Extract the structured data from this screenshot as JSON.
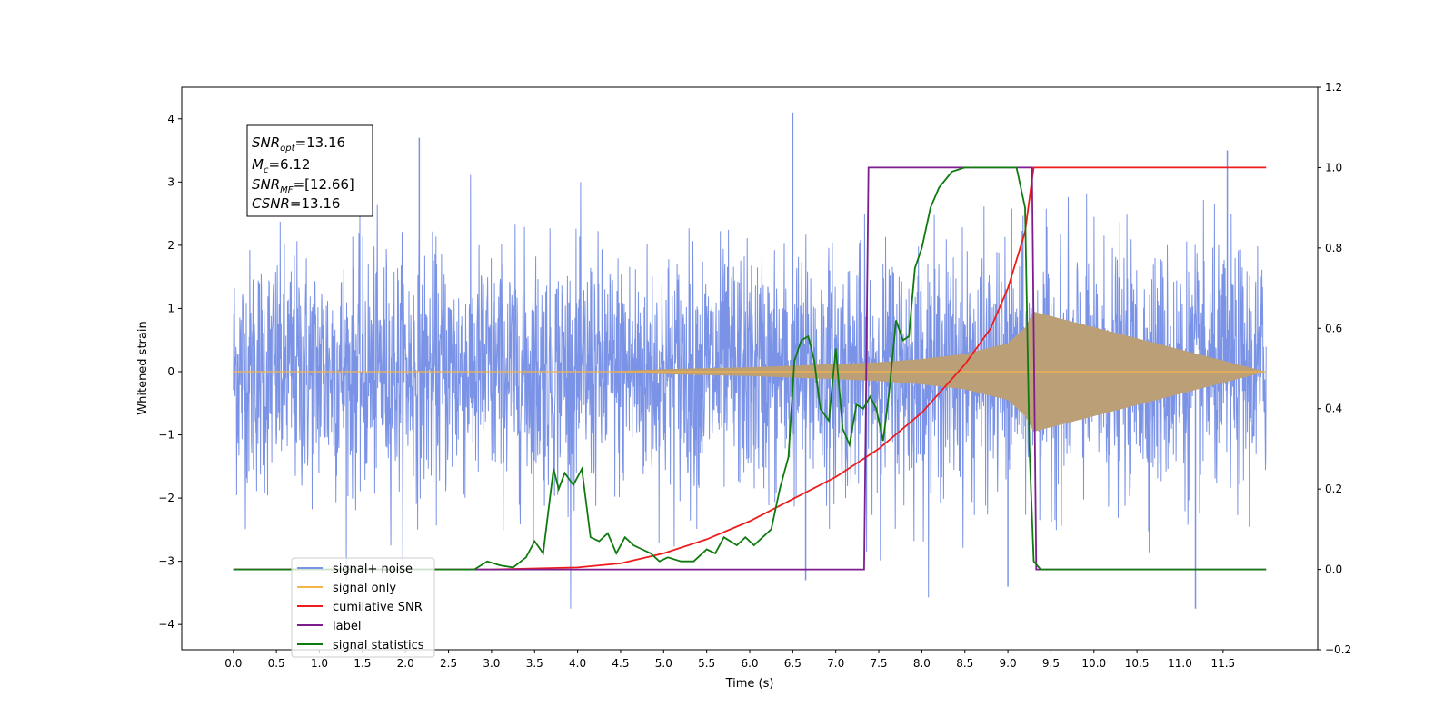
{
  "chart_data": {
    "type": "line",
    "xlabel": "Time (s)",
    "ylabel": "Whitened strain",
    "x_ticks": [
      "0.0",
      "0.5",
      "1.0",
      "1.5",
      "2.0",
      "2.5",
      "3.0",
      "3.5",
      "4.0",
      "4.5",
      "5.0",
      "5.5",
      "6.0",
      "6.5",
      "7.0",
      "7.5",
      "8.0",
      "8.5",
      "9.0",
      "9.5",
      "10.0",
      "10.5",
      "11.0",
      "11.5"
    ],
    "xlim": [
      -0.6,
      12.6
    ],
    "ylim_left": [
      -4.4,
      4.5
    ],
    "ylim_right": [
      -0.2,
      1.2
    ],
    "y_left_ticks": [
      "4",
      "3",
      "2",
      "1",
      "0",
      "−1",
      "−2",
      "−3",
      "−4"
    ],
    "y_right_ticks": [
      "1.2",
      "1.0",
      "0.8",
      "0.6",
      "0.4",
      "0.2",
      "0.0",
      "−0.2"
    ],
    "annotation": {
      "snr_opt_base": "SNR",
      "snr_opt_sub": "opt",
      "snr_opt_value": "=13.16",
      "mc_base": "M",
      "mc_sub": "c",
      "mc_value": "=6.12",
      "snr_mf_base": "SNR",
      "snr_mf_sub": "MF",
      "snr_mf_value": "=[12.66]",
      "csnr_base": "CSNR",
      "csnr_value": "=13.16"
    },
    "legend": {
      "position": "lower-left",
      "entries": [
        "signal+ noise",
        "signal only",
        "cumilative SNR",
        "label",
        "signal statistics"
      ]
    },
    "colors": {
      "noise": "#7b93e6",
      "signal": "#f5b54a",
      "signal_fill": "#bb9f76",
      "cumulative_snr": "#ee1c1c",
      "label": "#7e1e8e",
      "statistics": "#107a10"
    },
    "series": [
      {
        "name": "signal+ noise",
        "axis": "left",
        "x_range": [
          0.0,
          12.0
        ],
        "envelope_max": 4.1,
        "envelope_min": -3.75,
        "typical_amplitude": 2.2
      },
      {
        "name": "signal only",
        "axis": "left",
        "chirp_start": 4.3,
        "merger_time": 9.3,
        "x": [
          0.0,
          4.3,
          5.0,
          6.0,
          7.0,
          7.5,
          8.0,
          8.5,
          9.0,
          9.2,
          9.3,
          12.0
        ],
        "amplitude": [
          0.0,
          0.0,
          0.04,
          0.07,
          0.12,
          0.15,
          0.2,
          0.28,
          0.45,
          0.7,
          0.95,
          0.0
        ]
      },
      {
        "name": "cumilative SNR",
        "axis": "right",
        "x": [
          0.0,
          3.0,
          4.0,
          4.5,
          5.0,
          5.5,
          6.0,
          6.5,
          7.0,
          7.5,
          8.0,
          8.5,
          8.8,
          9.0,
          9.2,
          9.28,
          9.3,
          12.0
        ],
        "y": [
          0.0,
          0.0,
          0.005,
          0.015,
          0.04,
          0.075,
          0.12,
          0.175,
          0.23,
          0.3,
          0.39,
          0.51,
          0.6,
          0.7,
          0.84,
          0.97,
          1.0,
          1.0
        ]
      },
      {
        "name": "label",
        "axis": "right",
        "x": [
          0.0,
          7.33,
          7.38,
          9.28,
          9.33,
          12.0
        ],
        "y": [
          0.0,
          0.0,
          1.0,
          1.0,
          0.0,
          0.0
        ]
      },
      {
        "name": "signal statistics",
        "axis": "right",
        "x": [
          0.0,
          2.8,
          2.95,
          3.1,
          3.25,
          3.4,
          3.5,
          3.6,
          3.72,
          3.78,
          3.85,
          3.95,
          4.05,
          4.15,
          4.25,
          4.35,
          4.45,
          4.55,
          4.65,
          4.75,
          4.85,
          4.95,
          5.05,
          5.2,
          5.35,
          5.5,
          5.6,
          5.7,
          5.85,
          5.95,
          6.05,
          6.15,
          6.25,
          6.35,
          6.45,
          6.52,
          6.6,
          6.68,
          6.75,
          6.82,
          6.92,
          7.0,
          7.08,
          7.16,
          7.24,
          7.32,
          7.4,
          7.47,
          7.55,
          7.62,
          7.7,
          7.78,
          7.85,
          7.92,
          8.0,
          8.1,
          8.2,
          8.35,
          8.5,
          8.7,
          9.1,
          9.2,
          9.25,
          9.3,
          9.38,
          12.0
        ],
        "y": [
          0.0,
          0.0,
          0.02,
          0.01,
          0.005,
          0.03,
          0.07,
          0.04,
          0.25,
          0.2,
          0.24,
          0.21,
          0.25,
          0.08,
          0.07,
          0.09,
          0.04,
          0.08,
          0.06,
          0.05,
          0.04,
          0.02,
          0.03,
          0.02,
          0.02,
          0.05,
          0.04,
          0.08,
          0.06,
          0.08,
          0.06,
          0.08,
          0.1,
          0.2,
          0.28,
          0.52,
          0.57,
          0.58,
          0.52,
          0.4,
          0.37,
          0.55,
          0.35,
          0.31,
          0.41,
          0.4,
          0.43,
          0.4,
          0.32,
          0.44,
          0.62,
          0.57,
          0.58,
          0.75,
          0.8,
          0.9,
          0.95,
          0.99,
          1.0,
          1.0,
          1.0,
          0.9,
          0.3,
          0.02,
          0.0,
          0.0
        ]
      }
    ]
  }
}
